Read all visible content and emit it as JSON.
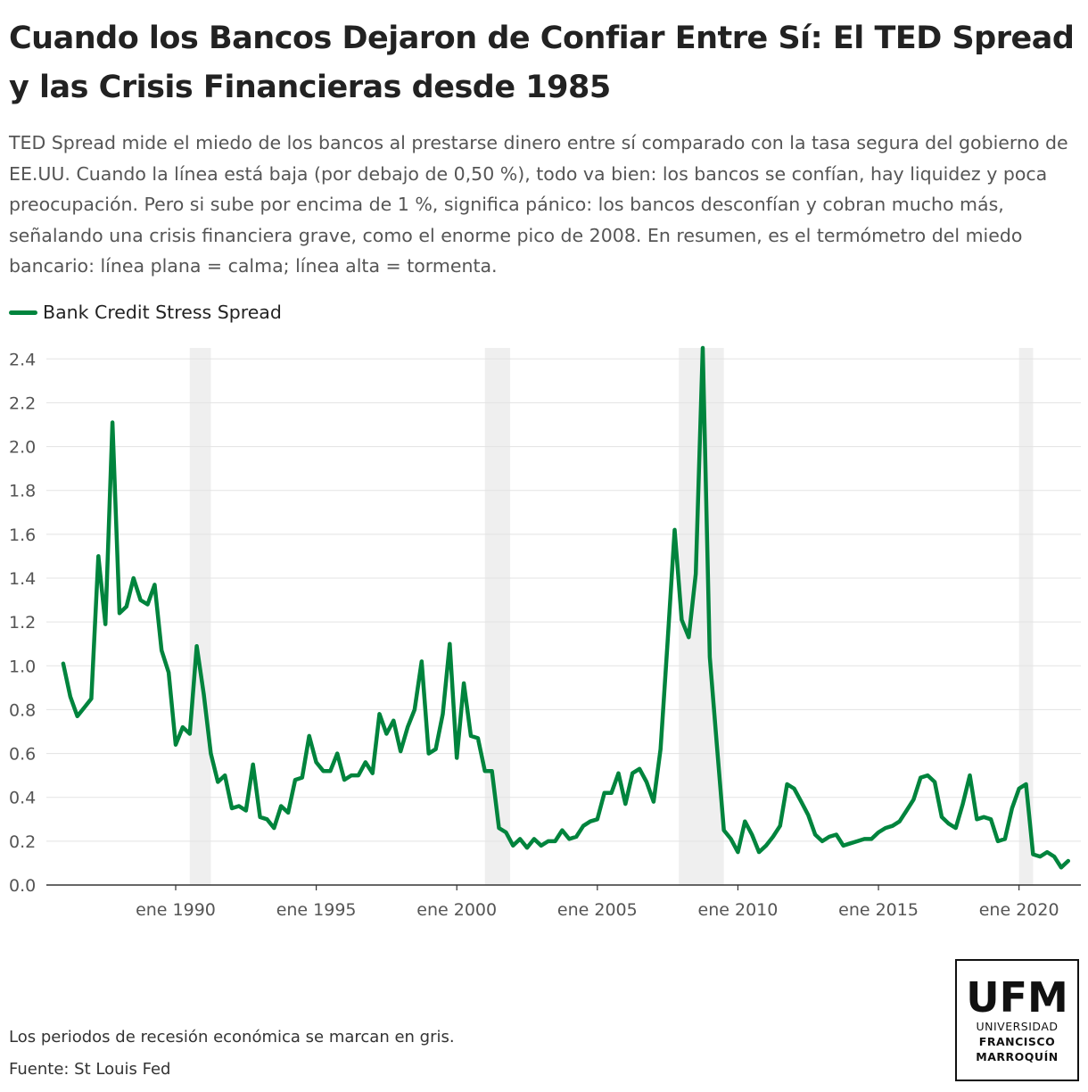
{
  "title": "Cuando los Bancos Dejaron de Confiar Entre Sí: El TED Spread y las Crisis Financieras desde 1985",
  "subtitle": "TED Spread mide el miedo de los bancos al prestarse dinero entre sí comparado con la tasa segura del gobierno de EE.UU. Cuando la línea está baja (por debajo de 0,50 %), todo va bien: los bancos se confían, hay liquidez y poca preocupación. Pero si sube por encima de 1 %, significa pánico: los bancos desconfían y cobran mucho más, señalando una crisis financiera grave, como el enorme pico de 2008. En resumen, es el termómetro del miedo bancario: línea plana = calma; línea alta = tormenta.",
  "legend": {
    "label": "Bank Credit Stress Spread",
    "color": "#00843d"
  },
  "notes": {
    "recession": "Los periodos de recesión económica se marcan en gris.",
    "source": "Fuente: St Louis Fed"
  },
  "logo": {
    "mark": "UFM",
    "line1": "UNIVERSIDAD",
    "line2": "FRANCISCO",
    "line3": "MARROQUÍN"
  },
  "colors": {
    "line": "#00843d",
    "recession": "#efefef",
    "grid": "#e3e3e3",
    "axis": "#333333",
    "tick_text": "#555555"
  },
  "chart_data": {
    "type": "line",
    "title": "Cuando los Bancos Dejaron de Confiar Entre Sí: El TED Spread y las Crisis Financieras desde 1985",
    "xlabel": "",
    "ylabel": "",
    "xlim": [
      1985.4,
      2022.2
    ],
    "ylim": [
      0,
      2.45
    ],
    "yticks": [
      0.0,
      0.2,
      0.4,
      0.6,
      0.8,
      1.0,
      1.2,
      1.4,
      1.6,
      1.8,
      2.0,
      2.2,
      2.4
    ],
    "ytick_labels": [
      "0.0",
      "0.2",
      "0.4",
      "0.6",
      "0.8",
      "1.0",
      "1.2",
      "1.4",
      "1.6",
      "1.8",
      "2.0",
      "2.2",
      "2.4"
    ],
    "xticks": [
      1990,
      1995,
      2000,
      2005,
      2010,
      2015,
      2020
    ],
    "xtick_labels": [
      "ene 1990",
      "ene 1995",
      "ene 2000",
      "ene 2005",
      "ene 2010",
      "ene 2015",
      "ene 2020"
    ],
    "recessions": [
      [
        1990.5,
        1991.25
      ],
      [
        2001.0,
        2001.9
      ],
      [
        2007.9,
        2009.5
      ],
      [
        2020.0,
        2020.5
      ]
    ],
    "grid": true,
    "legend_position": "top-left",
    "series": [
      {
        "name": "Bank Credit Stress Spread",
        "x": [
          1986.0,
          1986.25,
          1986.5,
          1986.75,
          1987.0,
          1987.25,
          1987.5,
          1987.75,
          1988.0,
          1988.25,
          1988.5,
          1988.75,
          1989.0,
          1989.25,
          1989.5,
          1989.75,
          1990.0,
          1990.25,
          1990.5,
          1990.75,
          1991.0,
          1991.25,
          1991.5,
          1991.75,
          1992.0,
          1992.25,
          1992.5,
          1992.75,
          1993.0,
          1993.25,
          1993.5,
          1993.75,
          1994.0,
          1994.25,
          1994.5,
          1994.75,
          1995.0,
          1995.25,
          1995.5,
          1995.75,
          1996.0,
          1996.25,
          1996.5,
          1996.75,
          1997.0,
          1997.25,
          1997.5,
          1997.75,
          1998.0,
          1998.25,
          1998.5,
          1998.75,
          1999.0,
          1999.25,
          1999.5,
          1999.75,
          2000.0,
          2000.25,
          2000.5,
          2000.75,
          2001.0,
          2001.25,
          2001.5,
          2001.75,
          2002.0,
          2002.25,
          2002.5,
          2002.75,
          2003.0,
          2003.25,
          2003.5,
          2003.75,
          2004.0,
          2004.25,
          2004.5,
          2004.75,
          2005.0,
          2005.25,
          2005.5,
          2005.75,
          2006.0,
          2006.25,
          2006.5,
          2006.75,
          2007.0,
          2007.25,
          2007.5,
          2007.75,
          2008.0,
          2008.25,
          2008.5,
          2008.75,
          2009.0,
          2009.25,
          2009.5,
          2009.75,
          2010.0,
          2010.25,
          2010.5,
          2010.75,
          2011.0,
          2011.25,
          2011.5,
          2011.75,
          2012.0,
          2012.25,
          2012.5,
          2012.75,
          2013.0,
          2013.25,
          2013.5,
          2013.75,
          2014.0,
          2014.25,
          2014.5,
          2014.75,
          2015.0,
          2015.25,
          2015.5,
          2015.75,
          2016.0,
          2016.25,
          2016.5,
          2016.75,
          2017.0,
          2017.25,
          2017.5,
          2017.75,
          2018.0,
          2018.25,
          2018.5,
          2018.75,
          2019.0,
          2019.25,
          2019.5,
          2019.75,
          2020.0,
          2020.25,
          2020.5,
          2020.75,
          2021.0,
          2021.25,
          2021.5,
          2021.75
        ],
        "values": [
          1.01,
          0.86,
          0.77,
          0.81,
          0.85,
          1.5,
          1.19,
          2.11,
          1.24,
          1.27,
          1.4,
          1.3,
          1.28,
          1.37,
          1.07,
          0.97,
          0.64,
          0.72,
          0.69,
          1.09,
          0.87,
          0.6,
          0.47,
          0.5,
          0.35,
          0.36,
          0.34,
          0.55,
          0.31,
          0.3,
          0.26,
          0.36,
          0.33,
          0.48,
          0.49,
          0.68,
          0.56,
          0.52,
          0.52,
          0.6,
          0.48,
          0.5,
          0.5,
          0.56,
          0.51,
          0.78,
          0.69,
          0.75,
          0.61,
          0.72,
          0.8,
          1.02,
          0.6,
          0.62,
          0.78,
          1.1,
          0.58,
          0.92,
          0.68,
          0.67,
          0.52,
          0.52,
          0.26,
          0.24,
          0.18,
          0.21,
          0.17,
          0.21,
          0.18,
          0.2,
          0.2,
          0.25,
          0.21,
          0.22,
          0.27,
          0.29,
          0.3,
          0.42,
          0.42,
          0.51,
          0.37,
          0.51,
          0.53,
          0.47,
          0.38,
          0.62,
          1.11,
          1.62,
          1.21,
          1.13,
          1.42,
          2.45,
          1.04,
          0.64,
          0.25,
          0.21,
          0.15,
          0.29,
          0.23,
          0.15,
          0.18,
          0.22,
          0.27,
          0.46,
          0.44,
          0.38,
          0.32,
          0.23,
          0.2,
          0.22,
          0.23,
          0.18,
          0.19,
          0.2,
          0.21,
          0.21,
          0.24,
          0.26,
          0.27,
          0.29,
          0.34,
          0.39,
          0.49,
          0.5,
          0.47,
          0.31,
          0.28,
          0.26,
          0.37,
          0.5,
          0.3,
          0.31,
          0.3,
          0.2,
          0.21,
          0.35,
          0.44,
          0.46,
          0.14,
          0.13,
          0.15,
          0.13,
          0.08,
          0.11
        ]
      }
    ]
  }
}
